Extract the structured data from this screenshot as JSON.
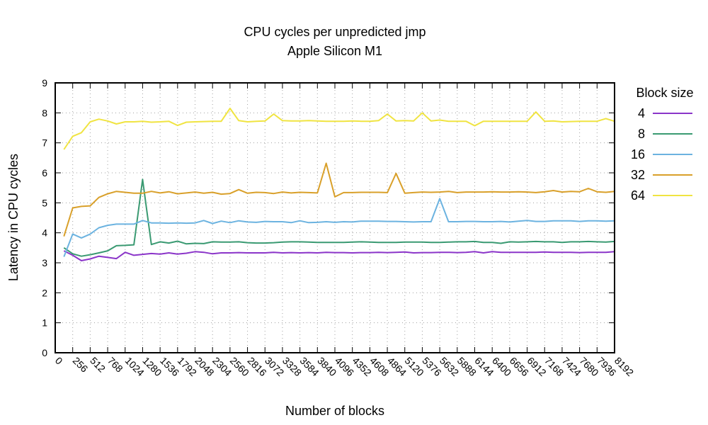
{
  "chart_data": {
    "type": "line",
    "title": "CPU cycles per unpredicted jmp",
    "subtitle": "Apple Silicon M1",
    "xlabel": "Number of blocks",
    "ylabel": "Latency in CPU cycles",
    "xlim": [
      0,
      8192
    ],
    "ylim": [
      0,
      9
    ],
    "grid": true,
    "legend": {
      "title": "Block size",
      "placement": "right"
    },
    "x_tick_labels": [
      "0",
      "256",
      "512",
      "768",
      "1024",
      "1280",
      "1536",
      "1792",
      "2048",
      "2304",
      "2560",
      "2816",
      "3072",
      "3328",
      "3584",
      "3840",
      "4096",
      "4352",
      "4608",
      "4864",
      "5120",
      "5376",
      "5632",
      "5888",
      "6144",
      "6400",
      "6656",
      "6912",
      "7168",
      "7424",
      "7680",
      "7936",
      "8192"
    ],
    "y_tick_labels": [
      "0",
      "1",
      "2",
      "3",
      "4",
      "5",
      "6",
      "7",
      "8",
      "9"
    ],
    "x": [
      128,
      256,
      384,
      512,
      640,
      768,
      896,
      1024,
      1152,
      1280,
      1408,
      1536,
      1664,
      1792,
      1920,
      2048,
      2176,
      2304,
      2432,
      2560,
      2688,
      2816,
      2944,
      3072,
      3200,
      3328,
      3456,
      3584,
      3712,
      3840,
      3968,
      4096,
      4224,
      4352,
      4480,
      4608,
      4736,
      4864,
      4992,
      5120,
      5248,
      5376,
      5504,
      5632,
      5760,
      5888,
      6016,
      6144,
      6272,
      6400,
      6528,
      6656,
      6784,
      6912,
      7040,
      7168,
      7296,
      7424,
      7552,
      7680,
      7808,
      7936,
      8064,
      8192
    ],
    "series": [
      {
        "name": "4",
        "color": "#8b35c9",
        "values": [
          3.4,
          3.25,
          3.07,
          3.13,
          3.22,
          3.18,
          3.14,
          3.35,
          3.25,
          3.28,
          3.31,
          3.29,
          3.33,
          3.29,
          3.32,
          3.37,
          3.35,
          3.3,
          3.33,
          3.33,
          3.34,
          3.33,
          3.33,
          3.33,
          3.35,
          3.33,
          3.34,
          3.33,
          3.34,
          3.33,
          3.35,
          3.34,
          3.34,
          3.33,
          3.34,
          3.34,
          3.35,
          3.34,
          3.35,
          3.36,
          3.33,
          3.34,
          3.34,
          3.35,
          3.35,
          3.34,
          3.35,
          3.37,
          3.33,
          3.37,
          3.35,
          3.35,
          3.35,
          3.35,
          3.35,
          3.36,
          3.35,
          3.35,
          3.35,
          3.34,
          3.35,
          3.35,
          3.35,
          3.37
        ]
      },
      {
        "name": "8",
        "color": "#3a9a72",
        "values": [
          3.5,
          3.3,
          3.22,
          3.27,
          3.33,
          3.4,
          3.57,
          3.58,
          3.6,
          5.78,
          3.61,
          3.7,
          3.66,
          3.72,
          3.63,
          3.65,
          3.64,
          3.7,
          3.69,
          3.69,
          3.7,
          3.67,
          3.66,
          3.66,
          3.67,
          3.69,
          3.7,
          3.7,
          3.69,
          3.68,
          3.68,
          3.68,
          3.68,
          3.69,
          3.7,
          3.69,
          3.68,
          3.68,
          3.68,
          3.69,
          3.69,
          3.69,
          3.68,
          3.68,
          3.69,
          3.7,
          3.7,
          3.71,
          3.68,
          3.68,
          3.65,
          3.7,
          3.69,
          3.7,
          3.71,
          3.7,
          3.7,
          3.68,
          3.7,
          3.7,
          3.71,
          3.7,
          3.69,
          3.71
        ]
      },
      {
        "name": "16",
        "color": "#6cb3e0",
        "values": [
          3.2,
          3.96,
          3.83,
          3.96,
          4.17,
          4.25,
          4.29,
          4.29,
          4.29,
          4.41,
          4.33,
          4.33,
          4.32,
          4.33,
          4.32,
          4.33,
          4.41,
          4.31,
          4.39,
          4.34,
          4.4,
          4.36,
          4.35,
          4.38,
          4.37,
          4.37,
          4.34,
          4.4,
          4.34,
          4.35,
          4.37,
          4.35,
          4.37,
          4.36,
          4.39,
          4.39,
          4.39,
          4.38,
          4.38,
          4.37,
          4.36,
          4.37,
          4.37,
          5.14,
          4.37,
          4.37,
          4.38,
          4.38,
          4.37,
          4.37,
          4.38,
          4.36,
          4.39,
          4.41,
          4.38,
          4.38,
          4.4,
          4.4,
          4.4,
          4.38,
          4.4,
          4.4,
          4.39,
          4.4
        ]
      },
      {
        "name": "32",
        "color": "#d9a02a",
        "values": [
          3.88,
          4.83,
          4.88,
          4.9,
          5.18,
          5.3,
          5.38,
          5.35,
          5.32,
          5.32,
          5.38,
          5.33,
          5.37,
          5.3,
          5.33,
          5.36,
          5.32,
          5.35,
          5.29,
          5.31,
          5.44,
          5.32,
          5.35,
          5.34,
          5.31,
          5.36,
          5.33,
          5.35,
          5.34,
          5.33,
          6.32,
          5.2,
          5.34,
          5.34,
          5.35,
          5.35,
          5.35,
          5.34,
          5.98,
          5.32,
          5.34,
          5.36,
          5.35,
          5.36,
          5.38,
          5.34,
          5.36,
          5.36,
          5.36,
          5.37,
          5.36,
          5.36,
          5.37,
          5.36,
          5.34,
          5.37,
          5.41,
          5.36,
          5.38,
          5.37,
          5.48,
          5.37,
          5.35,
          5.38
        ]
      },
      {
        "name": "64",
        "color": "#f0e442",
        "values": [
          6.78,
          7.22,
          7.34,
          7.7,
          7.79,
          7.73,
          7.63,
          7.7,
          7.7,
          7.72,
          7.69,
          7.7,
          7.72,
          7.58,
          7.69,
          7.7,
          7.71,
          7.72,
          7.72,
          8.15,
          7.74,
          7.7,
          7.72,
          7.73,
          7.96,
          7.74,
          7.73,
          7.73,
          7.74,
          7.73,
          7.72,
          7.72,
          7.72,
          7.73,
          7.72,
          7.72,
          7.74,
          7.96,
          7.73,
          7.74,
          7.73,
          8.0,
          7.73,
          7.76,
          7.72,
          7.72,
          7.72,
          7.57,
          7.72,
          7.72,
          7.72,
          7.72,
          7.72,
          7.72,
          8.03,
          7.72,
          7.73,
          7.7,
          7.71,
          7.72,
          7.72,
          7.72,
          7.81,
          7.72
        ]
      }
    ]
  }
}
